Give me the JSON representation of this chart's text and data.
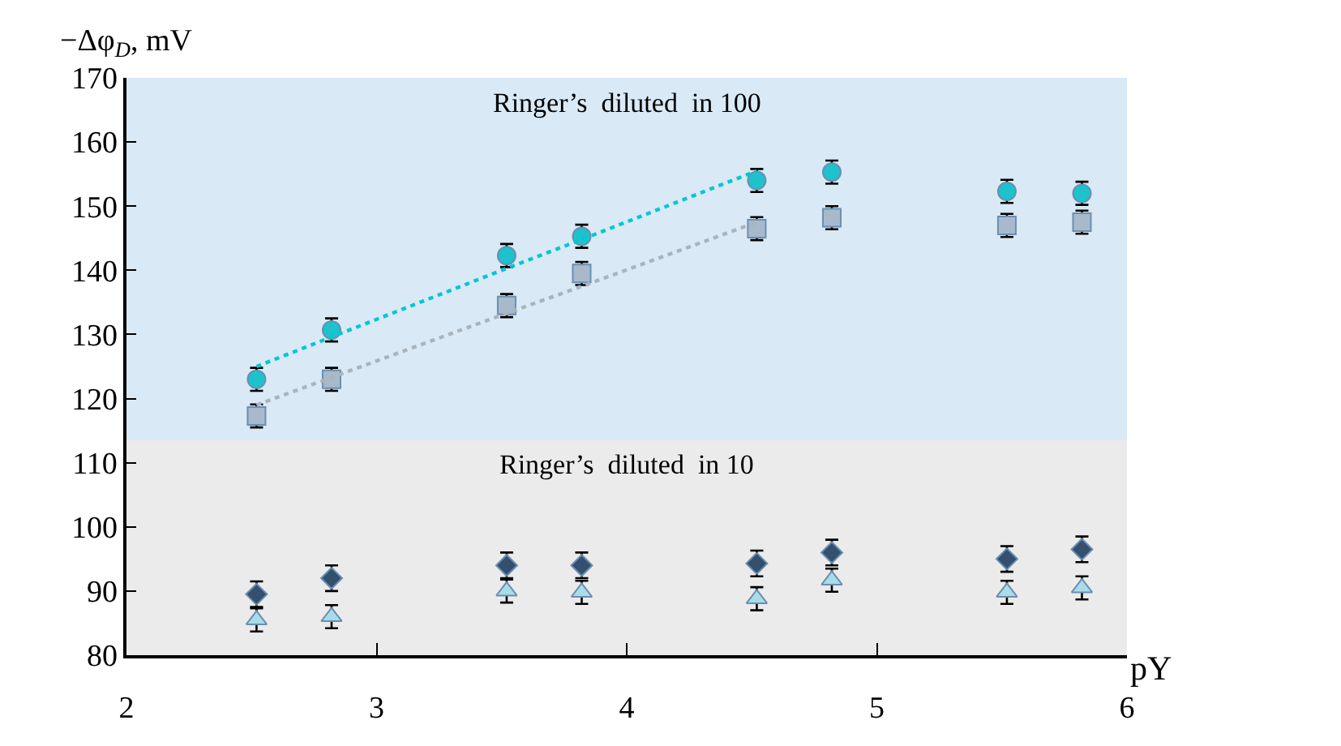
{
  "chart_data": {
    "type": "scatter",
    "xlabel": "pY",
    "ylabel": "−Δφ$_{D}$, mV",
    "x": [
      2.52,
      2.82,
      3.52,
      3.82,
      4.52,
      4.82,
      5.52,
      5.82
    ],
    "xlim": [
      2,
      6
    ],
    "xticks": [
      2,
      3,
      4,
      5,
      6
    ],
    "ylim": [
      80,
      170
    ],
    "yticks": [
      80,
      90,
      100,
      110,
      120,
      130,
      140,
      150,
      160,
      170
    ],
    "grid": false,
    "bands": [
      {
        "axis": "y",
        "from": 113.5,
        "to": 170,
        "label": "Ringer’s  diluted  in 100",
        "color": "#d9e9f5"
      },
      {
        "axis": "y",
        "from": 80,
        "to": 113.5,
        "label": "Ringer’s  diluted  in 10",
        "color": "#ebebeb"
      }
    ],
    "series": [
      {
        "color": "#1cc3cc",
        "marker": "circle",
        "values": [
          123,
          130.7,
          142.3,
          145.3,
          154,
          155.3,
          152.3,
          152
        ],
        "errors": [
          1.8,
          1.8,
          1.8,
          1.8,
          1.8,
          1.8,
          1.8,
          1.8
        ]
      },
      {
        "color": "#a9b9cc",
        "marker": "square",
        "values": [
          117.3,
          123,
          134.5,
          139.5,
          146.5,
          148.2,
          147,
          147.5
        ],
        "errors": [
          1.8,
          1.8,
          1.8,
          1.8,
          1.8,
          1.8,
          1.8,
          1.8
        ]
      },
      {
        "color": "#34506e",
        "marker": "diamond",
        "values": [
          89.5,
          92,
          94,
          94,
          94.3,
          96,
          95,
          96.5
        ],
        "errors": [
          2,
          2,
          2,
          2,
          2,
          2,
          2,
          2
        ]
      },
      {
        "color": "#a8dde8",
        "marker": "triangle",
        "values": [
          85.5,
          86,
          90,
          89.8,
          88.8,
          91.7,
          89.8,
          90.5
        ],
        "errors": [
          1.8,
          1.8,
          1.8,
          1.8,
          1.8,
          1.8,
          1.8,
          1.8
        ]
      },
      {
        "type": "line",
        "color": "#00c8d0",
        "line_style": "dotted",
        "marker": "none",
        "values": [
          125,
          129.6,
          140.3,
          144.8,
          155.5,
          null,
          null,
          null
        ]
      },
      {
        "type": "line",
        "color": "#aab4bc",
        "line_style": "dotted",
        "marker": "none",
        "values": [
          119,
          123.3,
          133.3,
          137.5,
          147.5,
          null,
          null,
          null
        ]
      }
    ]
  }
}
